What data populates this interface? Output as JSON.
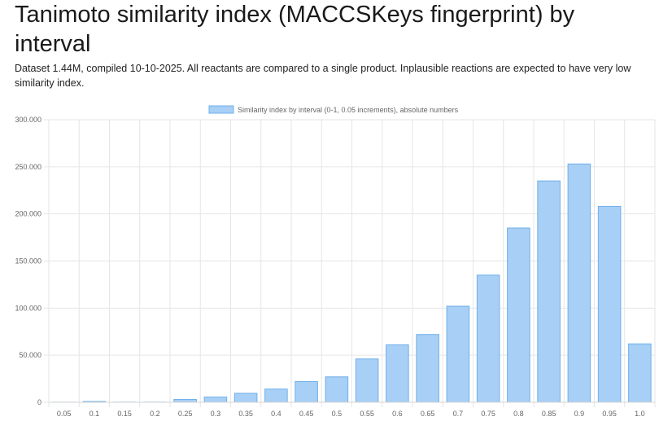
{
  "page": {
    "title": "Tanimoto similarity index (MACCSKeys fingerprint) by interval",
    "subtitle": "Dataset 1.44M, compiled 10-10-2025. All reactants are compared to a single product. Inplausible reactions are expected to have very low similarity index."
  },
  "chart_data": {
    "type": "bar",
    "title": "",
    "xlabel": "",
    "ylabel": "",
    "legend": "Similarity index by interval (0-1, 0.05 increments), absolute numbers",
    "legend_position": "top-center",
    "categories": [
      "0.05",
      "0.1",
      "0.15",
      "0.2",
      "0.25",
      "0.3",
      "0.35",
      "0.4",
      "0.45",
      "0.5",
      "0.55",
      "0.6",
      "0.65",
      "0.7",
      "0.75",
      "0.8",
      "0.85",
      "0.9",
      "0.95",
      "1.0"
    ],
    "values": [
      100,
      800,
      150,
      150,
      3000,
      5500,
      9500,
      14000,
      22000,
      27000,
      46000,
      61000,
      72000,
      102000,
      135000,
      185000,
      235000,
      253000,
      208000,
      62000
    ],
    "ylim": [
      0,
      300000
    ],
    "yticks": [
      0,
      50000,
      100000,
      150000,
      200000,
      250000,
      300000
    ],
    "ytick_labels": [
      "0",
      "50.000",
      "100.000",
      "150.000",
      "200.000",
      "250.000",
      "300.000"
    ],
    "grid": true,
    "colors": {
      "bar_fill": "#a8cff5",
      "bar_stroke": "#6fb0ea",
      "grid": "#e6e6e6",
      "tick_text": "#666666"
    }
  }
}
